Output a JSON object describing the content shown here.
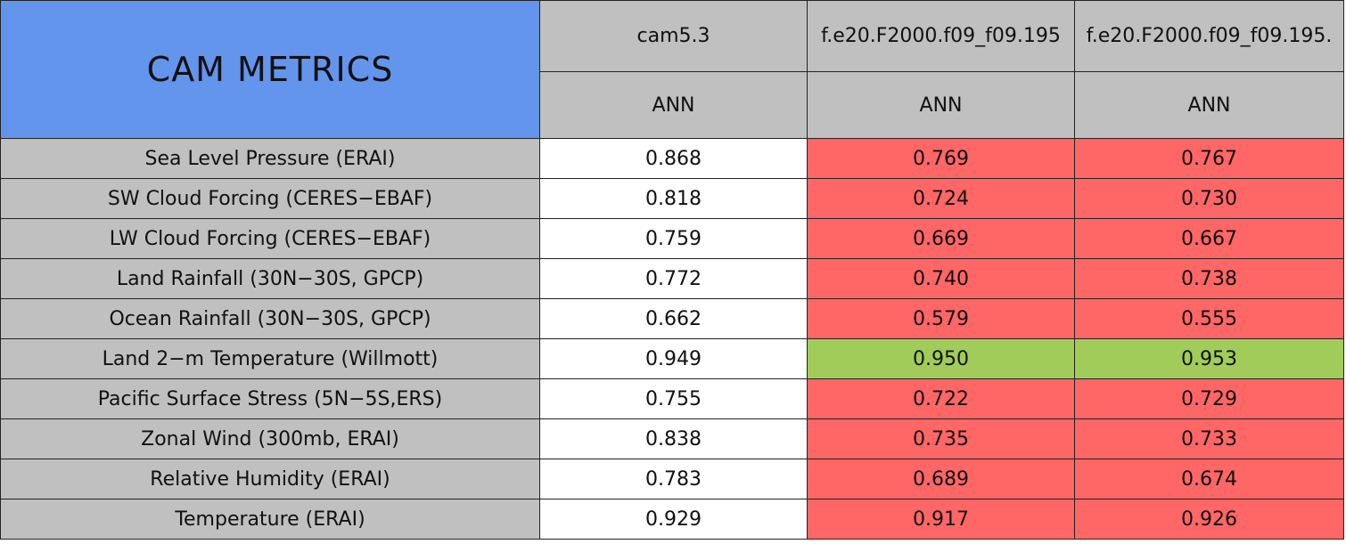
{
  "header": {
    "title": "CAM METRICS",
    "columns": [
      {
        "name": "cam5.3",
        "season": "ANN"
      },
      {
        "name": "f.e20.F2000.f09_f09.195",
        "season": "ANN"
      },
      {
        "name": "f.e20.F2000.f09_f09.195.",
        "season": "ANN"
      }
    ]
  },
  "colors": {
    "title": "#6495ed",
    "header": "#c0c0c0",
    "label": "#c0c0c0",
    "base": "#ffffff",
    "worse": "#ff6666",
    "better": "#a2cc5a"
  },
  "table": {
    "rows": [
      {
        "label": "Sea Level Pressure (ERAI)",
        "values": [
          "0.868",
          "0.769",
          "0.767"
        ],
        "status": [
          "base",
          "worse",
          "worse"
        ]
      },
      {
        "label": "SW Cloud Forcing (CERES−EBAF)",
        "values": [
          "0.818",
          "0.724",
          "0.730"
        ],
        "status": [
          "base",
          "worse",
          "worse"
        ]
      },
      {
        "label": "LW Cloud Forcing (CERES−EBAF)",
        "values": [
          "0.759",
          "0.669",
          "0.667"
        ],
        "status": [
          "base",
          "worse",
          "worse"
        ]
      },
      {
        "label": "Land Rainfall (30N−30S, GPCP)",
        "values": [
          "0.772",
          "0.740",
          "0.738"
        ],
        "status": [
          "base",
          "worse",
          "worse"
        ]
      },
      {
        "label": "Ocean Rainfall (30N−30S, GPCP)",
        "values": [
          "0.662",
          "0.579",
          "0.555"
        ],
        "status": [
          "base",
          "worse",
          "worse"
        ]
      },
      {
        "label": "Land 2−m Temperature (Willmott)",
        "values": [
          "0.949",
          "0.950",
          "0.953"
        ],
        "status": [
          "base",
          "better",
          "better"
        ]
      },
      {
        "label": "Pacific Surface Stress (5N−5S,ERS)",
        "values": [
          "0.755",
          "0.722",
          "0.729"
        ],
        "status": [
          "base",
          "worse",
          "worse"
        ]
      },
      {
        "label": "Zonal Wind (300mb, ERAI)",
        "values": [
          "0.838",
          "0.735",
          "0.733"
        ],
        "status": [
          "base",
          "worse",
          "worse"
        ]
      },
      {
        "label": "Relative Humidity (ERAI)",
        "values": [
          "0.783",
          "0.689",
          "0.674"
        ],
        "status": [
          "base",
          "worse",
          "worse"
        ]
      },
      {
        "label": "Temperature (ERAI)",
        "values": [
          "0.929",
          "0.917",
          "0.926"
        ],
        "status": [
          "base",
          "worse",
          "worse"
        ]
      }
    ]
  }
}
